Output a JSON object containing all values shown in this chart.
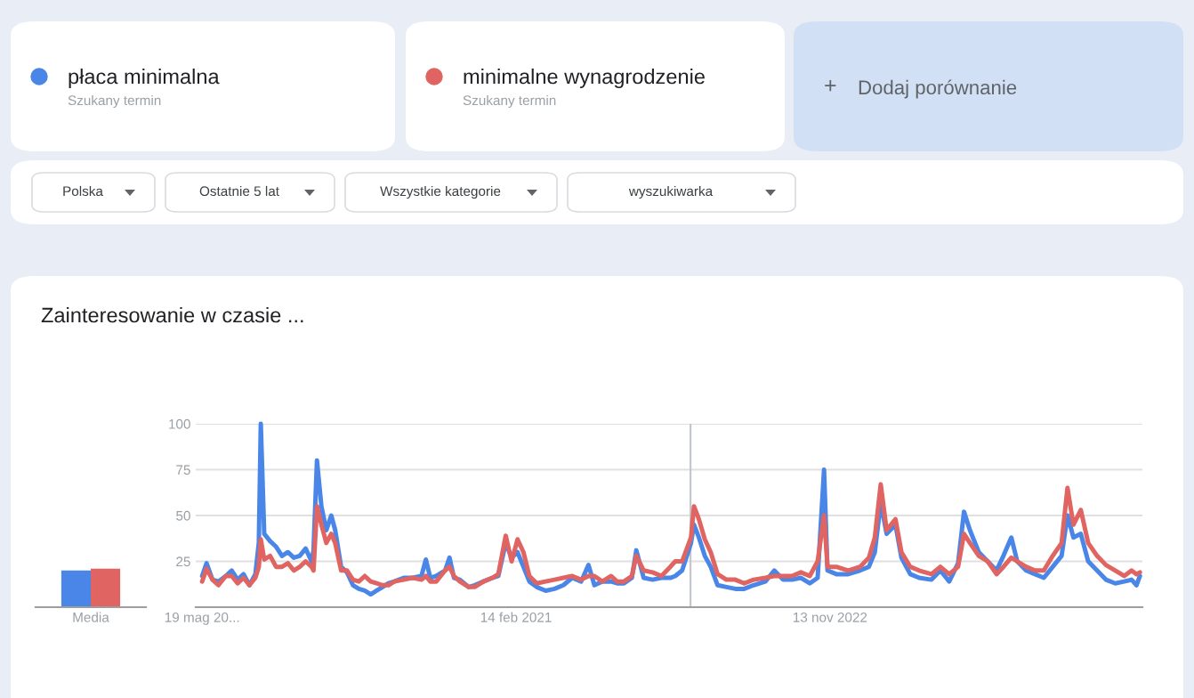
{
  "chart_data": [
    {
      "type": "bar",
      "categories": [
        "Media"
      ],
      "series": [
        {
          "color": "#4a86e8",
          "values": [
            20
          ]
        },
        {
          "color": "#e06461",
          "values": [
            21
          ]
        }
      ],
      "ylim": [
        0,
        100
      ],
      "tick_labels": "x"
    },
    {
      "type": "line",
      "title": "Zainteresowanie w czasie ...",
      "annotations": [
        "Szukany termin",
        "Szukany termin",
        "+",
        "Dodaj porównanie",
        "Polska",
        "Ostatnie 5 lat",
        "Wszystkie kategorie",
        "wyszukiwarka"
      ],
      "x": [
        "2019-05-19",
        "2019-05-28",
        "2019-06-09",
        "2019-06-21",
        "2019-07-06",
        "2019-07-18",
        "2019-07-30",
        "2019-08-11",
        "2019-08-23",
        "2019-09-04",
        "2019-09-11",
        "2019-09-15",
        "2019-09-22",
        "2019-10-04",
        "2019-10-16",
        "2019-10-28",
        "2019-11-09",
        "2019-11-21",
        "2019-12-03",
        "2019-12-15",
        "2019-12-27",
        "2019-12-31",
        "2020-01-07",
        "2020-01-16",
        "2020-01-26",
        "2020-02-05",
        "2020-02-13",
        "2020-02-25",
        "2020-03-08",
        "2020-03-20",
        "2020-04-01",
        "2020-04-13",
        "2020-04-25",
        "2020-05-07",
        "2020-05-19",
        "2020-05-31",
        "2020-06-12",
        "2020-07-01",
        "2020-07-19",
        "2020-08-06",
        "2020-08-15",
        "2020-08-24",
        "2020-09-05",
        "2020-09-23",
        "2020-10-02",
        "2020-10-11",
        "2020-10-23",
        "2020-11-10",
        "2020-11-22",
        "2020-12-10",
        "2020-12-28",
        "2021-01-09",
        "2021-01-24",
        "2021-02-05",
        "2021-02-17",
        "2021-03-01",
        "2021-03-13",
        "2021-03-28",
        "2021-04-15",
        "2021-05-03",
        "2021-05-21",
        "2021-06-08",
        "2021-06-26",
        "2021-07-11",
        "2021-07-23",
        "2021-08-08",
        "2021-08-26",
        "2021-09-07",
        "2021-09-21",
        "2021-10-07",
        "2021-10-16",
        "2021-10-31",
        "2021-11-18",
        "2021-12-06",
        "2021-12-24",
        "2022-01-03",
        "2022-01-17",
        "2022-02-04",
        "2022-02-10",
        "2022-02-20",
        "2022-03-04",
        "2022-03-16",
        "2022-03-30",
        "2022-04-17",
        "2022-05-05",
        "2022-05-23",
        "2022-06-11",
        "2022-07-05",
        "2022-07-23",
        "2022-08-10",
        "2022-08-28",
        "2022-09-15",
        "2022-10-03",
        "2022-10-19",
        "2022-11-01",
        "2022-11-08",
        "2022-11-26",
        "2022-12-20",
        "2023-01-13",
        "2023-01-31",
        "2023-02-12",
        "2023-02-24",
        "2023-03-08",
        "2023-03-26",
        "2023-04-07",
        "2023-04-25",
        "2023-05-13",
        "2023-06-07",
        "2023-06-25",
        "2023-07-13",
        "2023-07-31",
        "2023-08-12",
        "2023-08-24",
        "2023-09-11",
        "2023-09-29",
        "2023-10-17",
        "2023-10-31",
        "2023-11-16",
        "2023-11-28",
        "2023-12-16",
        "2024-01-03",
        "2024-01-21",
        "2024-02-08",
        "2024-02-26",
        "2024-03-09",
        "2024-03-21",
        "2024-04-05",
        "2024-04-20",
        "2024-05-08",
        "2024-05-26",
        "2024-06-14",
        "2024-07-02",
        "2024-07-17",
        "2024-07-27",
        "2024-08-03"
      ],
      "series": [
        {
          "name": "płaca minimalna",
          "color": "#4a86e8",
          "values": [
            17,
            24,
            15,
            14,
            17,
            20,
            15,
            18,
            12,
            18,
            35,
            100,
            40,
            36,
            33,
            28,
            30,
            27,
            28,
            32,
            25,
            31,
            80,
            55,
            42,
            50,
            42,
            22,
            19,
            12,
            10,
            9,
            7,
            9,
            11,
            13,
            14,
            16,
            16,
            17,
            26,
            16,
            17,
            20,
            27,
            16,
            15,
            11,
            12,
            14,
            16,
            17,
            35,
            27,
            30,
            22,
            14,
            11,
            9,
            10,
            12,
            16,
            14,
            23,
            12,
            14,
            14,
            13,
            13,
            16,
            31,
            16,
            15,
            16,
            16,
            17,
            20,
            35,
            45,
            38,
            28,
            22,
            12,
            11,
            10,
            10,
            12,
            14,
            20,
            15,
            15,
            16,
            13,
            16,
            75,
            20,
            18,
            18,
            20,
            22,
            30,
            57,
            40,
            45,
            27,
            18,
            16,
            15,
            20,
            14,
            24,
            52,
            42,
            30,
            25,
            20,
            28,
            38,
            25,
            20,
            18,
            16,
            22,
            28,
            50,
            38,
            40,
            25,
            20,
            15,
            13,
            14,
            15,
            12,
            17
          ]
        },
        {
          "name": "minimalne wynagrodzenie",
          "color": "#e06461",
          "values": [
            14,
            21,
            15,
            12,
            17,
            17,
            13,
            16,
            12,
            16,
            22,
            37,
            26,
            28,
            22,
            22,
            24,
            20,
            22,
            25,
            22,
            20,
            55,
            45,
            35,
            40,
            35,
            20,
            20,
            15,
            14,
            17,
            14,
            13,
            12,
            12,
            14,
            15,
            16,
            15,
            17,
            14,
            14,
            20,
            22,
            17,
            14,
            11,
            11,
            14,
            16,
            18,
            39,
            25,
            37,
            30,
            17,
            13,
            14,
            15,
            16,
            17,
            15,
            17,
            17,
            14,
            17,
            14,
            14,
            17,
            28,
            20,
            19,
            17,
            22,
            25,
            25,
            38,
            55,
            48,
            37,
            30,
            18,
            15,
            15,
            13,
            15,
            16,
            17,
            17,
            17,
            19,
            17,
            25,
            50,
            22,
            22,
            20,
            22,
            27,
            38,
            67,
            42,
            48,
            30,
            22,
            20,
            18,
            22,
            18,
            22,
            40,
            35,
            28,
            25,
            18,
            22,
            27,
            25,
            22,
            20,
            20,
            28,
            35,
            65,
            45,
            53,
            35,
            28,
            23,
            20,
            17,
            20,
            18,
            19
          ]
        }
      ],
      "xlim": [
        "2019-05-06",
        "2024-08-08"
      ],
      "xticks": [
        {
          "value": "2019-05-19",
          "label": "19 mag 20..."
        },
        {
          "value": "2021-02-14",
          "label": "14 feb 2021"
        },
        {
          "value": "2022-11-13",
          "label": "13 nov 2022"
        }
      ],
      "ylim": [
        0,
        100
      ],
      "yticks": [
        25,
        50,
        75,
        100
      ],
      "grid": "y",
      "legend": "top",
      "ref_lines": [
        {
          "axis": "x",
          "value": "2022-02-03",
          "color": "#c4c7cc"
        }
      ]
    }
  ]
}
